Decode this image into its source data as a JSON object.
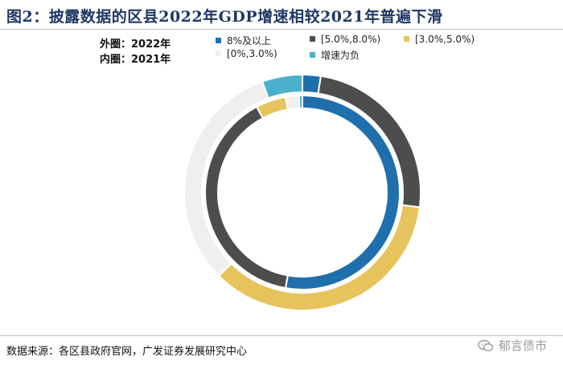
{
  "title": "图2：披露数据的区县2022年GDP增速相较2021年普遍下滑",
  "ring_labels": {
    "outer": "外圈：2022年",
    "inner": "内圈：2021年"
  },
  "source": "数据来源：各区县政府官网，广发证券发展研究中心",
  "watermark": "郁言债市",
  "chart_data": {
    "type": "donut",
    "title": "披露数据的区县2022年GDP增速相较2021年普遍下滑",
    "categories": [
      "8%及以上",
      "[5.0%,8.0%)",
      "[3.0%,5.0%)",
      "[0%,3.0%)",
      "增速为负"
    ],
    "colors": [
      "#1f6fad",
      "#4d4d4d",
      "#e6c35c",
      "#efefef",
      "#4ab0cc"
    ],
    "series": [
      {
        "name": "2022年",
        "ring": "outer",
        "values": [
          2.5,
          24.5,
          35.5,
          32.0,
          5.5
        ]
      },
      {
        "name": "2021年",
        "ring": "inner",
        "values": [
          47.5,
          35.5,
          4.5,
          2.0,
          0.5
        ]
      }
    ],
    "legend": [
      {
        "label": "8%及以上",
        "color": "#1f6fad"
      },
      {
        "label": "[5.0%,8.0%)",
        "color": "#4d4d4d"
      },
      {
        "label": "[3.0%,5.0%)",
        "color": "#e6c35c"
      },
      {
        "label": "[0%,3.0%)",
        "color": "#efefef"
      },
      {
        "label": "增速为负",
        "color": "#4ab0cc"
      }
    ]
  }
}
